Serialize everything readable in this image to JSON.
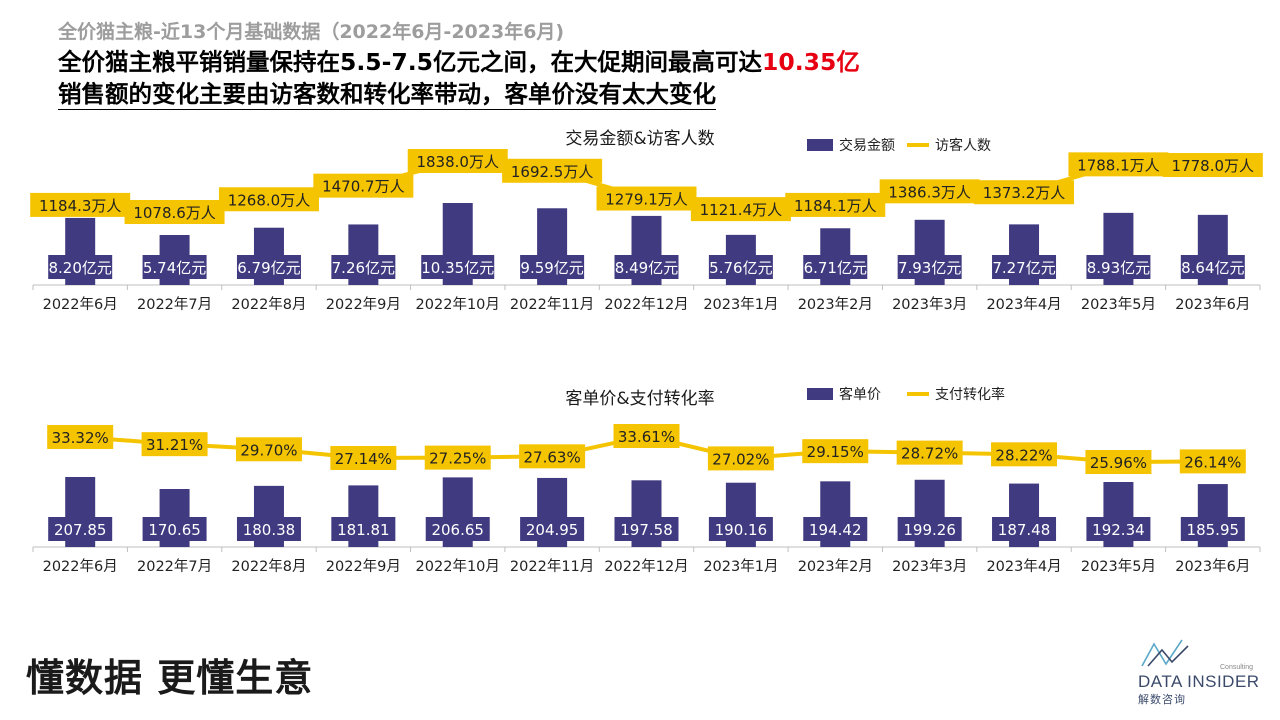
{
  "header": {
    "supertitle": "全价猫主粮-近13个月基础数据（2022年6月-2023年6月)",
    "headline_line1_prefix": "全价猫主粮平销销量保持在5.5-7.5亿元之间，在大促期间最高可达",
    "headline_line1_highlight": "10.35亿",
    "headline_line2": "销售额的变化主要由访客数和转化率带动，客单价没有太大变化"
  },
  "colors": {
    "bar": "#403a80",
    "line": "#f5c400",
    "label_box": "#f5c400",
    "highlight": "#e60012"
  },
  "chart_data": [
    {
      "type": "bar",
      "title": "交易金额&访客人数",
      "categories": [
        "2022年6月",
        "2022年7月",
        "2022年8月",
        "2022年9月",
        "2022年10月",
        "2022年11月",
        "2022年12月",
        "2023年1月",
        "2023年2月",
        "2023年3月",
        "2023年4月",
        "2023年5月",
        "2023年6月"
      ],
      "series": [
        {
          "name": "交易金额",
          "kind": "bar",
          "values": [
            8.2,
            5.74,
            6.79,
            7.26,
            10.35,
            9.59,
            8.49,
            5.76,
            6.71,
            7.93,
            7.27,
            8.93,
            8.64
          ],
          "labels": [
            "8.20亿元",
            "5.74亿元",
            "6.79亿元",
            "7.26亿元",
            "10.35亿元",
            "9.59亿元",
            "8.49亿元",
            "5.76亿元",
            "6.71亿元",
            "7.93亿元",
            "7.27亿元",
            "8.93亿元",
            "8.64亿元"
          ]
        },
        {
          "name": "访客人数",
          "kind": "line",
          "values": [
            1184.3,
            1078.6,
            1268.0,
            1470.7,
            1838.0,
            1692.5,
            1279.1,
            1121.4,
            1184.1,
            1386.3,
            1373.2,
            1788.1,
            1778.0
          ],
          "labels": [
            "1184.3万人",
            "1078.6万人",
            "1268.0万人",
            "1470.7万人",
            "1838.0万人",
            "1692.5万人",
            "1279.1万人",
            "1121.4万人",
            "1184.1万人",
            "1386.3万人",
            "1373.2万人",
            "1788.1万人",
            "1778.0万人"
          ]
        }
      ],
      "legend": "top-right"
    },
    {
      "type": "bar",
      "title": "客单价&支付转化率",
      "categories": [
        "2022年6月",
        "2022年7月",
        "2022年8月",
        "2022年9月",
        "2022年10月",
        "2022年11月",
        "2022年12月",
        "2023年1月",
        "2023年2月",
        "2023年3月",
        "2023年4月",
        "2023年5月",
        "2023年6月"
      ],
      "series": [
        {
          "name": "客单价",
          "kind": "bar",
          "values": [
            207.85,
            170.65,
            180.38,
            181.81,
            206.65,
            204.95,
            197.58,
            190.16,
            194.42,
            199.26,
            187.48,
            192.34,
            185.95
          ],
          "labels": [
            "207.85",
            "170.65",
            "180.38",
            "181.81",
            "206.65",
            "204.95",
            "197.58",
            "190.16",
            "194.42",
            "199.26",
            "187.48",
            "192.34",
            "185.95"
          ]
        },
        {
          "name": "支付转化率",
          "kind": "line",
          "values": [
            33.32,
            31.21,
            29.7,
            27.14,
            27.25,
            27.63,
            33.61,
            27.02,
            29.15,
            28.72,
            28.22,
            25.96,
            26.14
          ],
          "labels": [
            "33.32%",
            "31.21%",
            "29.70%",
            "27.14%",
            "27.25%",
            "27.63%",
            "33.61%",
            "27.02%",
            "29.15%",
            "28.72%",
            "28.22%",
            "25.96%",
            "26.14%"
          ]
        }
      ],
      "legend": "top-right"
    }
  ],
  "footer": {
    "slogan": "懂数据 更懂生意",
    "logo_consulting": "Consulting",
    "logo_name": "DATA INSIDER",
    "logo_sub": "解数咨询"
  }
}
